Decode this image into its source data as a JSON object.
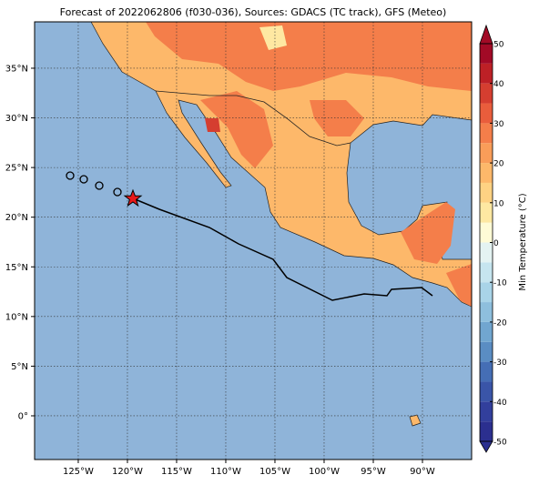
{
  "map": {
    "title": "Forecast of 2022062806 (f030-036), Sources: GDACS (TC track), GFS (Meteo)",
    "xlim": [
      -129.44,
      -85
    ],
    "ylim": [
      -4.4,
      39.67
    ],
    "xticks": [
      {
        "value": -125,
        "label": "125°W"
      },
      {
        "value": -120,
        "label": "120°W"
      },
      {
        "value": -115,
        "label": "115°W"
      },
      {
        "value": -110,
        "label": "110°W"
      },
      {
        "value": -105,
        "label": "105°W"
      },
      {
        "value": -100,
        "label": "100°W"
      },
      {
        "value": -95,
        "label": "95°W"
      },
      {
        "value": -90,
        "label": "90°W"
      }
    ],
    "yticks": [
      {
        "value": 0,
        "label": "0°"
      },
      {
        "value": 5,
        "label": "5°N"
      },
      {
        "value": 10,
        "label": "10°N"
      },
      {
        "value": 15,
        "label": "15°N"
      },
      {
        "value": 20,
        "label": "20°N"
      },
      {
        "value": 25,
        "label": "25°N"
      },
      {
        "value": 30,
        "label": "30°N"
      },
      {
        "value": 35,
        "label": "35°N"
      }
    ],
    "colorbar": {
      "label": "Min Temperature (°C)",
      "clim": [
        -50,
        50
      ],
      "ticks": [
        -50,
        -40,
        -30,
        -20,
        -10,
        0,
        10,
        20,
        30,
        40,
        50
      ],
      "colors": [
        "#2b2f8f",
        "#323f9c",
        "#3a55a8",
        "#456eb5",
        "#5a8dc3",
        "#71a6d0",
        "#8ebfdd",
        "#a9d4e8",
        "#c6e5ef",
        "#e4f3f2",
        "#fffbd6",
        "#fee8a2",
        "#fed283",
        "#fdb86a",
        "#f99d59",
        "#f47e4a",
        "#e95d3c",
        "#d53e30",
        "#bd2026",
        "#a20a26"
      ]
    }
  }
}
